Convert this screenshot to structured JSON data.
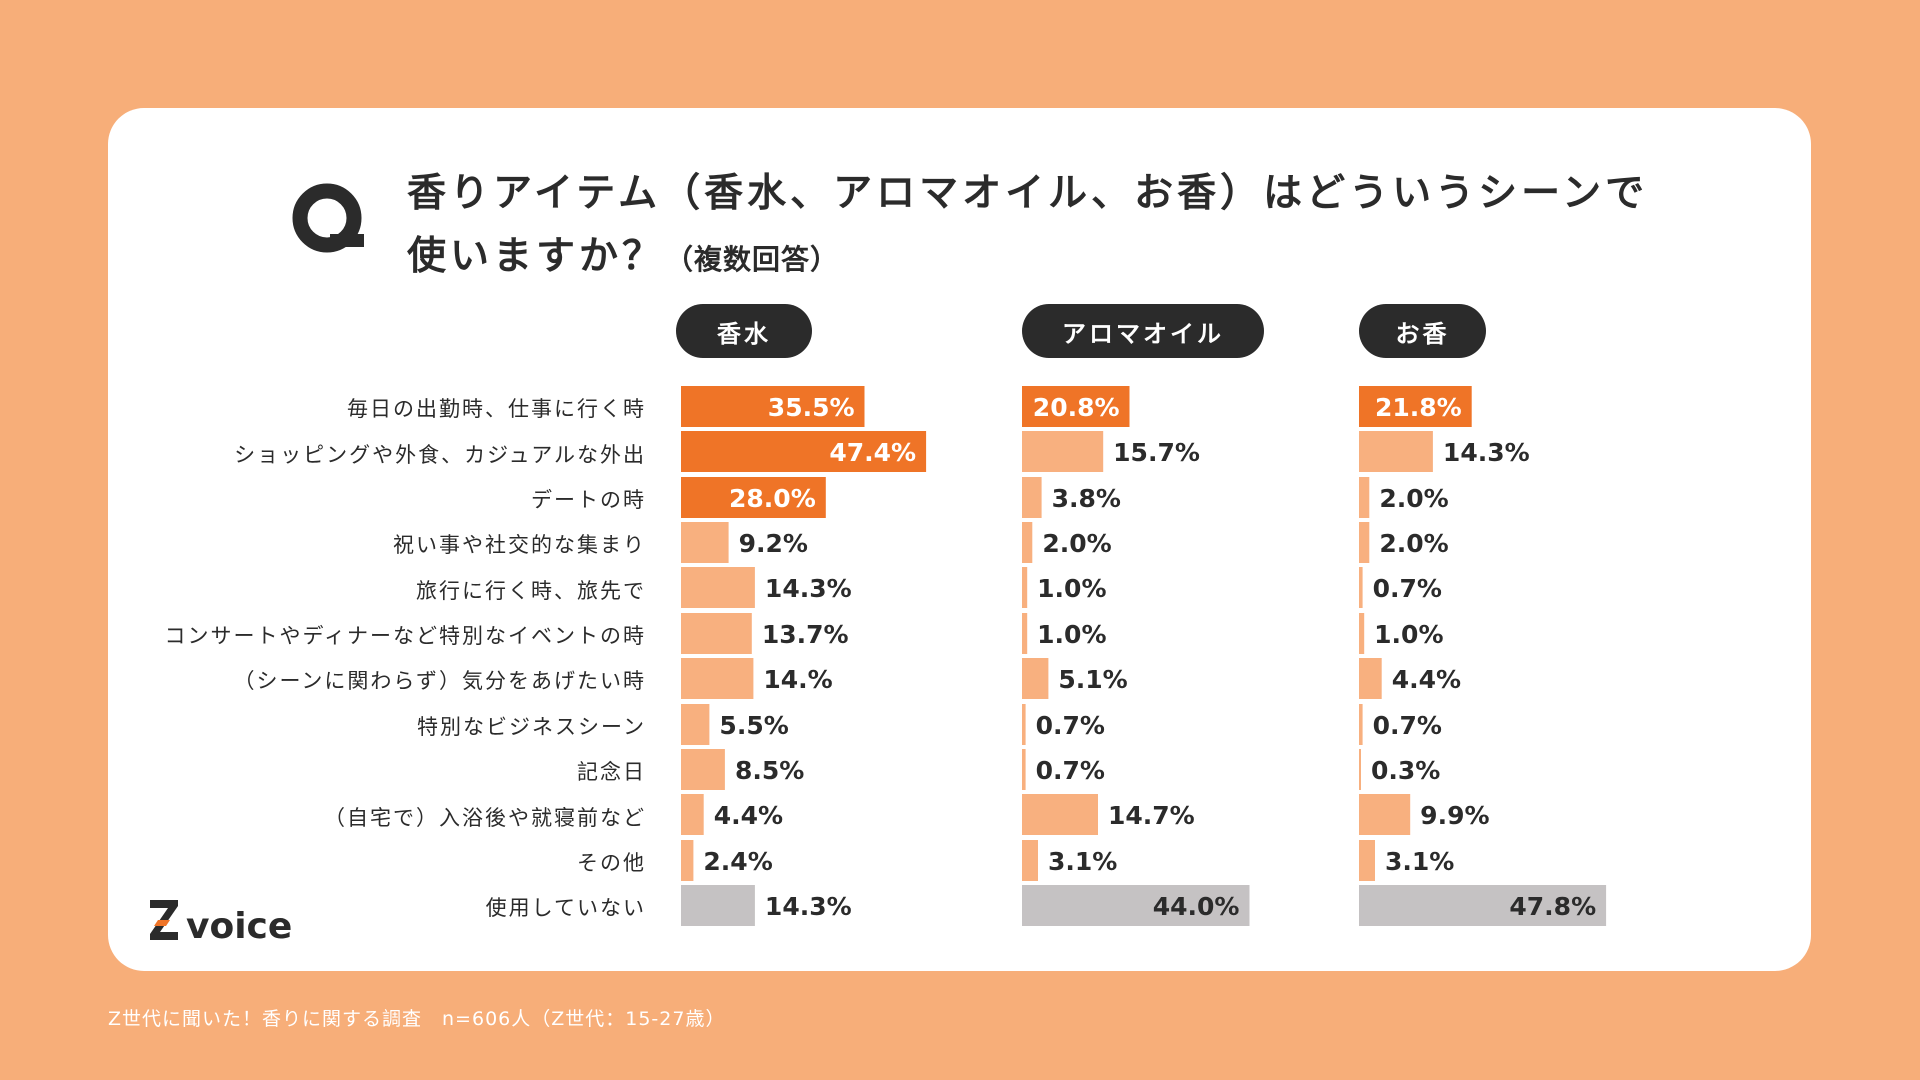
{
  "title": {
    "q_mark": "Q",
    "line1": "香りアイテム（香水、アロマオイル、お香）はどういうシーンで",
    "line2_main": "使いますか？",
    "line2_sub": "（複数回答）"
  },
  "logo": {
    "text": "voice",
    "mark": "Z"
  },
  "footer": "Z世代に聞いた！香りに関する調査　n=606人（Z世代：15-27歳）",
  "colors": {
    "background": "#f7ae79",
    "highlight": "#ef7427",
    "normal": "#f8b07f",
    "none": "#c5c2c3",
    "pill": "#2b2b2b"
  },
  "chart_data": {
    "type": "bar",
    "orientation": "horizontal",
    "categories": [
      "毎日の出勤時、仕事に行く時",
      "ショッピングや外食、カジュアルな外出",
      "デートの時",
      "祝い事や社交的な集まり",
      "旅行に行く時、旅先で",
      "コンサートやディナーなど特別なイベントの時",
      "（シーンに関わらず）気分をあげたい時",
      "特別なビジネスシーン",
      "記念日",
      "（自宅で）入浴後や就寝前など",
      "その他",
      "使用していない"
    ],
    "series": [
      {
        "name": "香水",
        "values": [
          35.5,
          47.4,
          28.0,
          9.2,
          14.3,
          13.7,
          14.0,
          5.5,
          8.5,
          4.4,
          2.4,
          14.3
        ],
        "labels": [
          "35.5%",
          "47.4%",
          "28.0%",
          "9.2%",
          "14.3%",
          "13.7%",
          "14.%",
          "5.5%",
          "8.5%",
          "4.4%",
          "2.4%",
          "14.3%"
        ],
        "highlight": [
          0,
          1,
          2
        ]
      },
      {
        "name": "アロマオイル",
        "values": [
          20.8,
          15.7,
          3.8,
          2.0,
          1.0,
          1.0,
          5.1,
          0.7,
          0.7,
          14.7,
          3.1,
          44.0
        ],
        "labels": [
          "20.8%",
          "15.7%",
          "3.8%",
          "2.0%",
          "1.0%",
          "1.0%",
          "5.1%",
          "0.7%",
          "0.7%",
          "14.7%",
          "3.1%",
          "44.0%"
        ],
        "highlight": [
          0
        ]
      },
      {
        "name": "お香",
        "values": [
          21.8,
          14.3,
          2.0,
          2.0,
          0.7,
          1.0,
          4.4,
          0.7,
          0.3,
          9.9,
          3.1,
          47.8
        ],
        "labels": [
          "21.8%",
          "14.3%",
          "2.0%",
          "2.0%",
          "0.7%",
          "1.0%",
          "4.4%",
          "0.7%",
          "0.3%",
          "9.9%",
          "3.1%",
          "47.8%"
        ],
        "highlight": [
          0
        ]
      }
    ],
    "none_category_index": 11,
    "unit": "%"
  }
}
